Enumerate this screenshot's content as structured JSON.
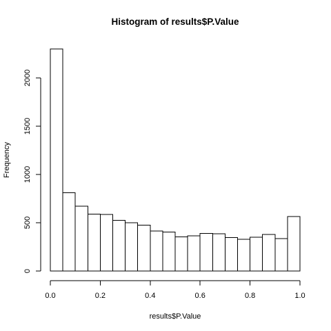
{
  "chart_data": {
    "type": "bar",
    "title": "Histogram of results$P.Value",
    "xlabel": "results$P.Value",
    "ylabel": "Frequency",
    "bins": [
      {
        "from": 0.0,
        "to": 0.05,
        "value": 2300
      },
      {
        "from": 0.05,
        "to": 0.1,
        "value": 810
      },
      {
        "from": 0.1,
        "to": 0.15,
        "value": 670
      },
      {
        "from": 0.15,
        "to": 0.2,
        "value": 590
      },
      {
        "from": 0.2,
        "to": 0.25,
        "value": 585
      },
      {
        "from": 0.25,
        "to": 0.3,
        "value": 525
      },
      {
        "from": 0.3,
        "to": 0.35,
        "value": 500
      },
      {
        "from": 0.35,
        "to": 0.4,
        "value": 475
      },
      {
        "from": 0.4,
        "to": 0.45,
        "value": 415
      },
      {
        "from": 0.45,
        "to": 0.5,
        "value": 405
      },
      {
        "from": 0.5,
        "to": 0.55,
        "value": 355
      },
      {
        "from": 0.55,
        "to": 0.6,
        "value": 365
      },
      {
        "from": 0.6,
        "to": 0.65,
        "value": 390
      },
      {
        "from": 0.65,
        "to": 0.7,
        "value": 385
      },
      {
        "from": 0.7,
        "to": 0.75,
        "value": 345
      },
      {
        "from": 0.75,
        "to": 0.8,
        "value": 330
      },
      {
        "from": 0.8,
        "to": 0.85,
        "value": 350
      },
      {
        "from": 0.85,
        "to": 0.9,
        "value": 380
      },
      {
        "from": 0.9,
        "to": 0.95,
        "value": 335
      },
      {
        "from": 0.95,
        "to": 1.0,
        "value": 565
      }
    ],
    "xlim": [
      0,
      1
    ],
    "ylim": [
      0,
      2300
    ],
    "x_ticks": [
      0.0,
      0.2,
      0.4,
      0.6,
      0.8,
      1.0
    ],
    "x_tick_labels": [
      "0.0",
      "0.2",
      "0.4",
      "0.6",
      "0.8",
      "1.0"
    ],
    "y_ticks": [
      0,
      500,
      1000,
      1500,
      2000
    ],
    "y_tick_labels": [
      "0",
      "500",
      "1000",
      "1500",
      "2000"
    ],
    "grid": false,
    "bar_fill": "#ffffff",
    "bar_stroke": "#000000"
  }
}
